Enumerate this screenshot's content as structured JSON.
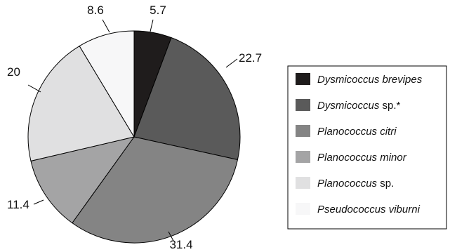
{
  "chart_data": {
    "type": "pie",
    "start": "12 o'clock",
    "direction": "clockwise",
    "slices": [
      {
        "label": "Dysmicoccus brevipes",
        "label_italic": "Dysmicoccus brevipes",
        "label_suffix": "",
        "value": 5.7,
        "value_label": "5.7",
        "color": "#1f1c1c"
      },
      {
        "label": "Dysmicoccus sp.*",
        "label_italic": "Dysmicoccus",
        "label_suffix": " sp.*",
        "value": 22.7,
        "value_label": "22.7",
        "color": "#5a5a5a"
      },
      {
        "label": "Planococcus citri",
        "label_italic": "Planococcus citri",
        "label_suffix": "",
        "value": 31.4,
        "value_label": "31.4",
        "color": "#848484"
      },
      {
        "label": "Planococcus minor",
        "label_italic": "Planococcus minor",
        "label_suffix": "",
        "value": 11.4,
        "value_label": "11.4",
        "color": "#a4a4a5"
      },
      {
        "label": "Planococcus sp.",
        "label_italic": "Planococcus",
        "label_suffix": " sp.",
        "value": 20,
        "value_label": "20",
        "color": "#e0e0e1"
      },
      {
        "label": "Pseudococcus viburni",
        "label_italic": "Pseudococcus viburni",
        "label_suffix": "",
        "value": 8.6,
        "value_label": "8.6",
        "color": "#f7f7f8"
      }
    ],
    "legend_position": "right"
  }
}
